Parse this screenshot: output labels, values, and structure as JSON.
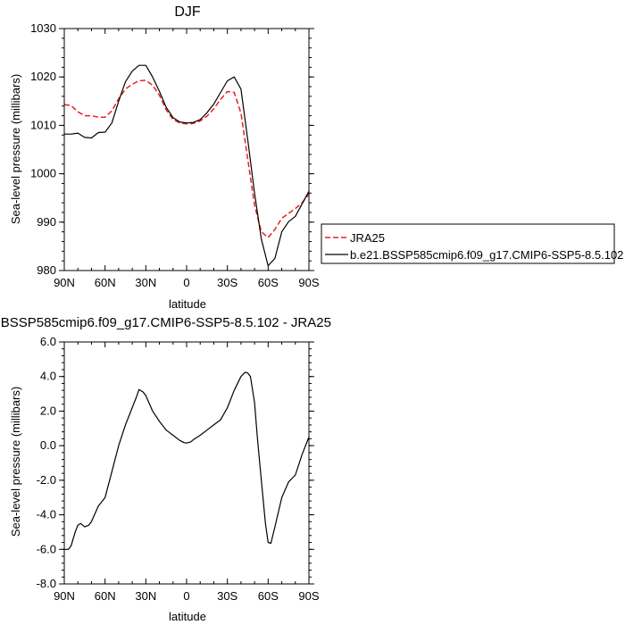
{
  "chart_data": [
    {
      "type": "line",
      "title": "DJF",
      "xlabel": "latitude",
      "ylabel": "Sea-level pressure (millibars)",
      "xlim": [
        90,
        -90
      ],
      "ylim": [
        980,
        1030
      ],
      "x_ticks": [
        90,
        60,
        30,
        0,
        -30,
        -60,
        -90
      ],
      "x_tick_labels": [
        "90N",
        "60N",
        "30N",
        "0",
        "30S",
        "60S",
        "90S"
      ],
      "y_ticks": [
        980,
        990,
        1000,
        1010,
        1020,
        1030
      ],
      "y_tick_labels": [
        "980",
        "990",
        "1000",
        "1010",
        "1020",
        "1030"
      ],
      "legend_position": "right",
      "series": [
        {
          "name": "JRA25",
          "color": "#e8201c",
          "dash": true,
          "x": [
            90,
            85,
            80,
            75,
            70,
            65,
            60,
            55,
            50,
            45,
            40,
            35,
            30,
            25,
            20,
            15,
            10,
            5,
            0,
            -5,
            -10,
            -15,
            -20,
            -25,
            -30,
            -35,
            -40,
            -45,
            -50,
            -55,
            -60,
            -65,
            -70,
            -75,
            -80,
            -85,
            -90
          ],
          "values": [
            1014.3,
            1014.1,
            1012.8,
            1012.0,
            1012.0,
            1011.7,
            1011.7,
            1013.0,
            1015.5,
            1017.5,
            1018.5,
            1019.2,
            1019.3,
            1018.3,
            1016.2,
            1013.2,
            1011.2,
            1010.5,
            1010.3,
            1010.4,
            1010.9,
            1011.9,
            1013.4,
            1015.4,
            1017.0,
            1016.8,
            1012.5,
            1003.0,
            993.5,
            988.0,
            986.8,
            988.5,
            990.8,
            991.8,
            992.8,
            994.0,
            995.8
          ]
        },
        {
          "name": "b.e21.BSSP585cmip6.f09_g17.CMIP6-SSP5-8.5.102",
          "color": "#000000",
          "dash": false,
          "x": [
            90,
            85,
            80,
            75,
            70,
            65,
            60,
            55,
            50,
            45,
            40,
            35,
            30,
            25,
            20,
            15,
            10,
            5,
            0,
            -5,
            -10,
            -15,
            -20,
            -25,
            -30,
            -35,
            -40,
            -45,
            -50,
            -55,
            -60,
            -65,
            -70,
            -75,
            -80,
            -85,
            -90
          ],
          "values": [
            1008.2,
            1008.2,
            1008.4,
            1007.5,
            1007.4,
            1008.5,
            1008.6,
            1010.5,
            1015.0,
            1019.0,
            1021.2,
            1022.4,
            1022.4,
            1020.0,
            1017.0,
            1013.7,
            1011.6,
            1010.7,
            1010.5,
            1010.6,
            1011.2,
            1012.6,
            1014.4,
            1016.8,
            1019.2,
            1020.0,
            1017.5,
            1007.0,
            996.0,
            986.5,
            981.0,
            982.5,
            988.0,
            990.1,
            991.2,
            993.8,
            996.4
          ]
        }
      ]
    },
    {
      "type": "line",
      "title": "b.e21.BSSP585cmip6.f09_g17.CMIP6-SSP5-8.5.102 - JRA25",
      "xlabel": "latitude",
      "ylabel": "Sea-level pressure (millibars)",
      "xlim": [
        90,
        -90
      ],
      "ylim": [
        -8.0,
        6.0
      ],
      "x_ticks": [
        90,
        60,
        30,
        0,
        -30,
        -60,
        -90
      ],
      "x_tick_labels": [
        "90N",
        "60N",
        "30N",
        "0",
        "30S",
        "60S",
        "90S"
      ],
      "y_ticks": [
        -8.0,
        -6.0,
        -4.0,
        -2.0,
        0.0,
        2.0,
        4.0,
        6.0
      ],
      "y_tick_labels": [
        "-8.0",
        "-6.0",
        "-4.0",
        "-2.0",
        "0.0",
        "2.0",
        "4.0",
        "6.0"
      ],
      "series": [
        {
          "color": "#000000",
          "dash": false,
          "x": [
            90,
            87,
            85,
            82,
            80,
            78,
            75,
            72,
            70,
            65,
            60,
            55,
            50,
            45,
            40,
            37,
            35,
            32,
            30,
            25,
            20,
            15,
            10,
            5,
            2,
            0,
            -3,
            -5,
            -10,
            -15,
            -20,
            -25,
            -30,
            -35,
            -40,
            -43,
            -45,
            -47,
            -50,
            -52,
            -55,
            -58,
            -60,
            -62,
            -65,
            -70,
            -75,
            -80,
            -85,
            -90
          ],
          "values": [
            -6.0,
            -6.0,
            -5.8,
            -5.0,
            -4.6,
            -4.5,
            -4.7,
            -4.6,
            -4.4,
            -3.5,
            -3.0,
            -1.5,
            0.0,
            1.2,
            2.2,
            2.8,
            3.25,
            3.1,
            2.9,
            2.0,
            1.4,
            0.9,
            0.6,
            0.3,
            0.18,
            0.15,
            0.22,
            0.35,
            0.6,
            0.9,
            1.2,
            1.5,
            2.2,
            3.2,
            4.0,
            4.25,
            4.2,
            4.0,
            2.5,
            0.5,
            -2.0,
            -4.5,
            -5.6,
            -5.65,
            -4.7,
            -3.0,
            -2.1,
            -1.7,
            -0.5,
            0.5
          ]
        }
      ]
    }
  ]
}
